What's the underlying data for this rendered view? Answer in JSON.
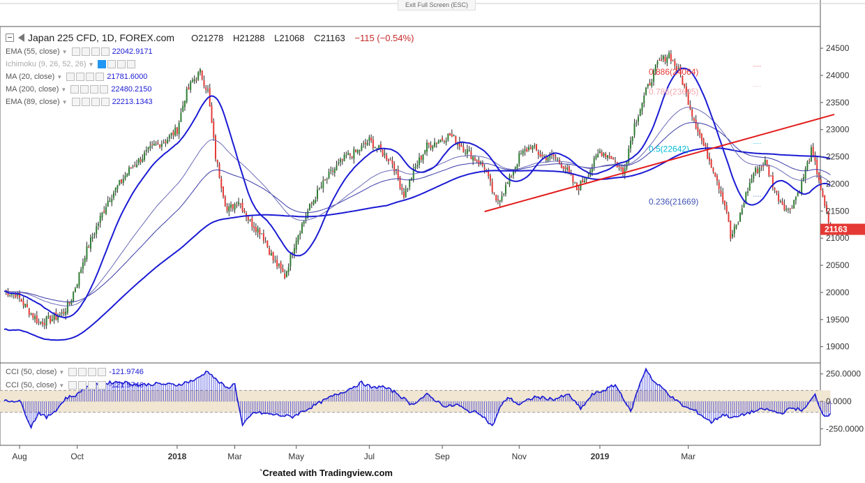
{
  "toolbar": {
    "exit_label": "Exit Full Screen (ESC)"
  },
  "header": {
    "title": "Japan 225 CFD, 1D, FOREX.com",
    "open": "O21278",
    "high": "H21288",
    "low": "L21068",
    "close": "C21163",
    "change": "−115 (−0.54%)"
  },
  "indicators": [
    {
      "name": "EMA (55, close)",
      "value": "22042.9171",
      "color": "#1a1ad4"
    },
    {
      "name": "Ichimoku (9, 26, 52, 26)",
      "value": "",
      "color": "#999999"
    },
    {
      "name": "MA (20, close)",
      "value": "21781.6000",
      "color": "#1a1ad4"
    },
    {
      "name": "MA (200, close)",
      "value": "22480.2150",
      "color": "#1a1ad4"
    },
    {
      "name": "EMA (89, close)",
      "value": "22213.1343",
      "color": "#1a1ad4"
    }
  ],
  "cci_legend": [
    {
      "name": "CCI (50, close)",
      "value": "-121.9746"
    },
    {
      "name": "CCI (50, close)",
      "value": "-121.9746"
    }
  ],
  "footer": {
    "credit": "`Created with Tradingview.com"
  },
  "colors": {
    "up": "#2e7d32",
    "down": "#e53935",
    "ma": "#1a1ad4",
    "trend": "#e31b1b",
    "cci": "#1a1ad4",
    "cci_band": "#f0e6d2"
  },
  "chart_data": {
    "type": "candlestick",
    "symbol": "Japan 225 CFD",
    "interval": "1D",
    "ylim": [
      18700,
      24900
    ],
    "y_ticks": [
      19000,
      19500,
      20000,
      20500,
      21000,
      21500,
      22000,
      22500,
      23000,
      23500,
      24000,
      24500
    ],
    "x_ticks": [
      "Aug",
      "Oct",
      "2018",
      "Mar",
      "May",
      "Jul",
      "Sep",
      "Nov",
      "2019",
      "Mar"
    ],
    "last_price": "21163",
    "close_series": {
      "x": [
        0,
        6,
        12,
        18,
        24,
        30,
        34,
        38,
        42,
        48,
        54,
        60,
        66,
        72,
        78,
        84,
        90,
        94,
        98,
        102,
        106,
        110,
        116,
        122,
        128,
        134,
        140,
        146,
        152,
        158,
        164,
        170,
        178,
        184,
        190,
        196,
        202,
        208,
        214,
        220,
        226,
        232,
        238,
        244,
        250,
        256,
        262,
        268,
        274,
        280,
        286,
        292,
        298,
        304,
        310,
        316,
        322,
        328,
        334,
        340,
        346,
        352,
        358,
        364,
        370,
        376,
        378,
        382,
        386,
        390,
        396,
        402,
        408,
        414,
        420,
        424,
        426,
        430
      ],
      "values": [
        20020,
        19980,
        19700,
        19450,
        19500,
        19600,
        19800,
        20200,
        20700,
        21200,
        21700,
        22000,
        22300,
        22500,
        22700,
        22800,
        23000,
        23600,
        23900,
        24050,
        23700,
        22500,
        21500,
        21700,
        21300,
        21100,
        20600,
        20300,
        21000,
        21500,
        21900,
        22200,
        22500,
        22600,
        22800,
        22600,
        22400,
        21800,
        22300,
        22700,
        22800,
        22900,
        22700,
        22500,
        22300,
        21650,
        22000,
        22500,
        22700,
        22500,
        22500,
        22300,
        21900,
        22200,
        22600,
        22500,
        22200,
        23100,
        23700,
        24200,
        24400,
        24000,
        23300,
        22700,
        22200,
        21500,
        21000,
        21300,
        21800,
        22200,
        22400,
        21800,
        21500,
        21900,
        22600,
        22100,
        21700,
        21163
      ]
    },
    "horizontal_levels": [
      {
        "label": "0.886(24064)",
        "value": 24064,
        "color": "#e53935"
      },
      {
        "label": "0.786(23695)",
        "value": 23695,
        "color": "#f4a7b0"
      },
      {
        "label": "0.5(22642)",
        "value": 22642,
        "color": "#00bcd4"
      },
      {
        "label": "0.236(21669)",
        "value": 21669,
        "color": "#3f51b5"
      }
    ],
    "trendline": {
      "start": {
        "x": 250,
        "value": 21490
      },
      "end": {
        "x": 432,
        "value": 23280
      }
    },
    "cci": {
      "ylim": [
        -400,
        350
      ],
      "y_ticks": [
        "250.0000",
        "0.0000",
        "-250.0000"
      ],
      "band": [
        -100,
        100
      ],
      "x": [
        0,
        8,
        14,
        18,
        22,
        28,
        32,
        38,
        42,
        50,
        60,
        70,
        80,
        90,
        100,
        106,
        110,
        116,
        120,
        124,
        130,
        140,
        150,
        160,
        170,
        178,
        186,
        192,
        196,
        204,
        212,
        220,
        230,
        236,
        240,
        248,
        254,
        258,
        262,
        268,
        276,
        286,
        294,
        300,
        306,
        312,
        318,
        322,
        326,
        330,
        334,
        338,
        344,
        348,
        354,
        360,
        368,
        374,
        380,
        388,
        396,
        404,
        410,
        416,
        422,
        426,
        430
      ],
      "values": [
        0,
        10,
        -230,
        -100,
        -150,
        -60,
        30,
        60,
        140,
        160,
        180,
        150,
        160,
        150,
        200,
        280,
        200,
        120,
        160,
        -220,
        -100,
        -120,
        -140,
        -50,
        40,
        100,
        170,
        120,
        140,
        80,
        -30,
        60,
        -50,
        -30,
        -80,
        -110,
        -230,
        -60,
        40,
        -30,
        40,
        20,
        60,
        -70,
        60,
        100,
        150,
        40,
        -100,
        120,
        300,
        180,
        100,
        30,
        -50,
        -90,
        -190,
        -120,
        -150,
        -100,
        -70,
        -110,
        -60,
        -80,
        60,
        -120,
        -122
      ]
    }
  }
}
